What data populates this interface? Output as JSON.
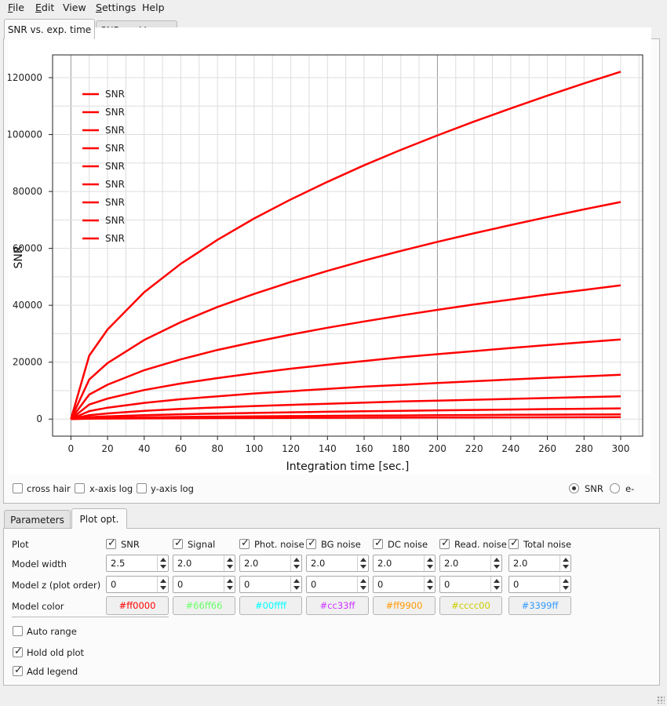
{
  "menu": {
    "items": [
      {
        "mnemonic": "F",
        "rest": "ile"
      },
      {
        "mnemonic": "E",
        "rest": "dit"
      },
      {
        "mnemonic": "",
        "rest": "View"
      },
      {
        "mnemonic": "S",
        "rest": "ettings"
      },
      {
        "mnemonic": "",
        "rest": "Help"
      }
    ]
  },
  "top_tabs": [
    "SNR vs. exp. time",
    "SNR vs. V-mag."
  ],
  "chart_data": {
    "type": "line",
    "xlabel": "Integration time [sec.]",
    "ylabel": "SNR",
    "xlim": [
      -10,
      312
    ],
    "ylim": [
      -6000,
      128000
    ],
    "xticks": [
      0,
      20,
      40,
      60,
      80,
      100,
      120,
      140,
      160,
      180,
      200,
      220,
      240,
      260,
      280,
      300
    ],
    "yticks": [
      0,
      20000,
      40000,
      60000,
      80000,
      100000,
      120000
    ],
    "grid": true,
    "legend_position": "top-left",
    "legend": [
      "SNR",
      "SNR",
      "SNR",
      "SNR",
      "SNR",
      "SNR",
      "SNR",
      "SNR",
      "SNR"
    ],
    "x": [
      0,
      10,
      20,
      40,
      60,
      80,
      100,
      120,
      140,
      160,
      180,
      200,
      220,
      240,
      260,
      280,
      300
    ],
    "series": [
      {
        "name": "SNR",
        "color": "#ff0000",
        "values": [
          0,
          22300,
          31500,
          44600,
          54600,
          63000,
          70500,
          77200,
          83400,
          89200,
          94600,
          99700,
          104600,
          109200,
          113700,
          118000,
          122100
        ]
      },
      {
        "name": "SNR",
        "color": "#ff0000",
        "values": [
          0,
          13900,
          19700,
          27800,
          34100,
          39400,
          44000,
          48200,
          52100,
          55700,
          59100,
          62300,
          65300,
          68200,
          71000,
          73700,
          76300
        ]
      },
      {
        "name": "SNR",
        "color": "#ff0000",
        "values": [
          0,
          8600,
          12100,
          17200,
          21000,
          24300,
          27100,
          29700,
          32100,
          34300,
          36400,
          38400,
          40300,
          42000,
          43800,
          45400,
          47000
        ]
      },
      {
        "name": "SNR",
        "color": "#ff0000",
        "values": [
          0,
          5100,
          7200,
          10200,
          12500,
          14400,
          16100,
          17700,
          19100,
          20400,
          21700,
          22800,
          23900,
          25000,
          26000,
          27000,
          28000
        ]
      },
      {
        "name": "SNR",
        "color": "#ff0000",
        "values": [
          0,
          2800,
          4000,
          5700,
          7000,
          8000,
          9000,
          9800,
          10600,
          11400,
          12000,
          12700,
          13300,
          13900,
          14500,
          15000,
          15600
        ]
      },
      {
        "name": "SNR",
        "color": "#ff0000",
        "values": [
          0,
          1400,
          2000,
          2900,
          3600,
          4100,
          4600,
          5000,
          5400,
          5800,
          6200,
          6500,
          6800,
          7100,
          7400,
          7700,
          8000
        ]
      },
      {
        "name": "SNR",
        "color": "#ff0000",
        "values": [
          0,
          680,
          970,
          1370,
          1680,
          1940,
          2170,
          2380,
          2570,
          2740,
          2910,
          3070,
          3220,
          3360,
          3500,
          3630,
          3760
        ]
      },
      {
        "name": "SNR",
        "color": "#ff0000",
        "values": [
          0,
          300,
          430,
          610,
          750,
          860,
          960,
          1060,
          1140,
          1220,
          1290,
          1360,
          1430,
          1490,
          1550,
          1610,
          1670
        ]
      },
      {
        "name": "SNR",
        "color": "#ff0000",
        "values": [
          0,
          120,
          170,
          240,
          300,
          340,
          380,
          420,
          450,
          480,
          510,
          540,
          560,
          590,
          610,
          640,
          660
        ]
      }
    ]
  },
  "plot_options_row": {
    "cross_hair": "cross hair",
    "x_axis_log": "x-axis log",
    "y_axis_log": "y-axis log",
    "snr_radio": "SNR",
    "e_radio": "e-"
  },
  "bottom_tabs": [
    "Parameters",
    "Plot opt."
  ],
  "plot_opt": {
    "row_labels": {
      "plot": "Plot",
      "width": "Model width",
      "z": "Model z (plot order)",
      "color": "Model color"
    },
    "models": [
      {
        "name": "SNR",
        "checked": true,
        "width": "2.5",
        "z": "0",
        "color": "#ff0000"
      },
      {
        "name": "Signal",
        "checked": true,
        "width": "2.0",
        "z": "0",
        "color": "#66ff66"
      },
      {
        "name": "Phot. noise",
        "checked": true,
        "width": "2.0",
        "z": "0",
        "color": "#00ffff"
      },
      {
        "name": "BG noise",
        "checked": true,
        "width": "2.0",
        "z": "0",
        "color": "#cc33ff"
      },
      {
        "name": "DC noise",
        "checked": true,
        "width": "2.0",
        "z": "0",
        "color": "#ff9900"
      },
      {
        "name": "Read. noise",
        "checked": true,
        "width": "2.0",
        "z": "0",
        "color": "#cccc00"
      },
      {
        "name": "Total noise",
        "checked": true,
        "width": "2.0",
        "z": "0",
        "color": "#3399ff"
      }
    ],
    "auto_range": "Auto range",
    "hold_old_plot": "Hold old plot",
    "add_legend": "Add legend"
  }
}
